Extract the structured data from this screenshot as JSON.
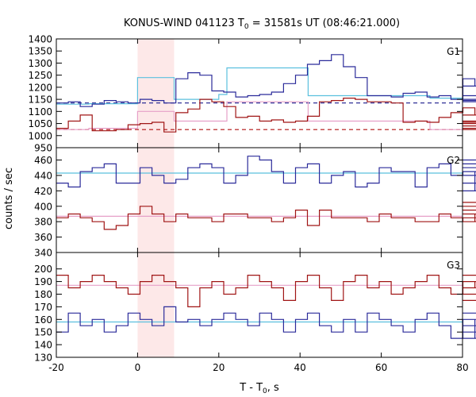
{
  "chart_data": {
    "type": "line",
    "title": "KONUS-WIND 041123 T",
    "title_sub": "0",
    "title_rest": " = 31581s UT (08:46:21.000)",
    "xlabel": "T - T",
    "xlabel_sub": "0",
    "xlabel_rest": ", s",
    "ylabel": "counts / sec",
    "xlim": [
      -20,
      80
    ],
    "x_ticks": [
      -20,
      0,
      20,
      40,
      60,
      80
    ],
    "highlight": {
      "x_start": 0,
      "x_end": 9,
      "color": "#fde8e8"
    },
    "colors": {
      "blue_hist": "#2b2b9a",
      "red_hist": "#a01515",
      "blue_fit": "#5bc0de",
      "red_fit": "#e6a0c8",
      "blue_bg": "#1a1a8c",
      "red_bg": "#b01010"
    },
    "step": 2.944,
    "x_start": -20,
    "panels": [
      {
        "label": "G1",
        "ylim": [
          950,
          1400
        ],
        "y_ticks": [
          950,
          1000,
          1050,
          1100,
          1150,
          1200,
          1250,
          1300,
          1350,
          1400
        ],
        "series": [
          {
            "color": "blue_hist",
            "values": [
              1135,
              1140,
              1120,
              1130,
              1145,
              1140,
              1135,
              1150,
              1145,
              1135,
              1235,
              1260,
              1250,
              1185,
              1180,
              1160,
              1165,
              1170,
              1180,
              1215,
              1250,
              1295,
              1310,
              1335,
              1285,
              1240,
              1165,
              1165,
              1160,
              1175,
              1180,
              1160,
              1165,
              1150,
              1235,
              1205,
              1165,
              1150,
              1145,
              1140,
              1150,
              1145,
              1145,
              1145
            ]
          },
          {
            "color": "red_hist",
            "values": [
              1030,
              1060,
              1085,
              1020,
              1020,
              1025,
              1045,
              1050,
              1055,
              1015,
              1095,
              1110,
              1150,
              1140,
              1120,
              1075,
              1080,
              1060,
              1065,
              1055,
              1060,
              1080,
              1140,
              1145,
              1155,
              1150,
              1140,
              1140,
              1135,
              1055,
              1060,
              1055,
              1075,
              1095,
              1115,
              1085,
              1055,
              1060,
              1050,
              1060,
              1050,
              1030,
              1040,
              1025
            ]
          }
        ],
        "fits": [
          {
            "color": "blue_fit",
            "x": [
              -20,
              -12,
              -12,
              0,
              0,
              9,
              9,
              20,
              20,
              22,
              22,
              42,
              42,
              72,
              72,
              80
            ],
            "y": [
              1130,
              1130,
              1132,
              1132,
              1240,
              1240,
              1150,
              1150,
              1170,
              1170,
              1280,
              1280,
              1165,
              1165,
              1155,
              1155
            ]
          },
          {
            "color": "red_fit",
            "x": [
              -20,
              -12,
              -12,
              0,
              0,
              9,
              9,
              20,
              20,
              22,
              22,
              42,
              42,
              72,
              72,
              80
            ],
            "y": [
              1025,
              1025,
              1030,
              1030,
              1100,
              1100,
              1060,
              1060,
              1060,
              1060,
              1140,
              1140,
              1060,
              1060,
              1025,
              1025
            ]
          }
        ],
        "backgrounds": [
          {
            "color": "blue_bg",
            "y": 1135
          },
          {
            "color": "red_bg",
            "y": 1025
          }
        ]
      },
      {
        "label": "G2",
        "ylim": [
          340,
          476
        ],
        "y_ticks": [
          340,
          360,
          380,
          400,
          420,
          440,
          460
        ],
        "series": [
          {
            "color": "blue_hist",
            "values": [
              430,
              425,
              445,
              450,
              455,
              430,
              430,
              450,
              440,
              430,
              435,
              450,
              455,
              450,
              430,
              440,
              465,
              460,
              445,
              430,
              450,
              455,
              430,
              440,
              445,
              425,
              430,
              450,
              445,
              445,
              425,
              450,
              455,
              440,
              445,
              420,
              440,
              445,
              430,
              455,
              445,
              450,
              460,
              455
            ]
          },
          {
            "color": "red_hist",
            "values": [
              385,
              390,
              385,
              380,
              370,
              375,
              390,
              400,
              390,
              380,
              390,
              385,
              385,
              380,
              390,
              390,
              385,
              385,
              380,
              385,
              395,
              375,
              395,
              385,
              385,
              385,
              380,
              390,
              385,
              385,
              380,
              380,
              390,
              385,
              380,
              390,
              395,
              390,
              390,
              405,
              385,
              380,
              395,
              400
            ]
          }
        ],
        "fits": [
          {
            "color": "blue_fit",
            "x": [
              -20,
              80
            ],
            "y": [
              443,
              443
            ]
          },
          {
            "color": "red_fit",
            "x": [
              -20,
              80
            ],
            "y": [
              387,
              387
            ]
          }
        ],
        "backgrounds": []
      },
      {
        "label": "G3",
        "ylim": [
          130,
          213
        ],
        "y_ticks": [
          130,
          140,
          150,
          160,
          170,
          180,
          190,
          200
        ],
        "series": [
          {
            "color": "red_hist",
            "values": [
              195,
              185,
              190,
              195,
              190,
              185,
              180,
              190,
              195,
              190,
              185,
              170,
              185,
              190,
              180,
              185,
              195,
              190,
              185,
              175,
              190,
              195,
              185,
              175,
              190,
              195,
              185,
              190,
              180,
              185,
              190,
              195,
              185,
              180,
              190,
              185,
              175,
              190,
              195,
              185,
              190,
              175,
              180,
              195
            ]
          },
          {
            "color": "blue_hist",
            "values": [
              150,
              165,
              155,
              160,
              150,
              155,
              165,
              160,
              155,
              170,
              158,
              160,
              155,
              160,
              165,
              160,
              155,
              165,
              160,
              150,
              160,
              165,
              155,
              150,
              160,
              150,
              165,
              160,
              155,
              150,
              160,
              165,
              155,
              145,
              160,
              145,
              165,
              150,
              145,
              155,
              160,
              150,
              155,
              165
            ]
          }
        ],
        "fits": [
          {
            "color": "red_fit",
            "x": [
              -20,
              80
            ],
            "y": [
              187,
              187
            ]
          },
          {
            "color": "blue_fit",
            "x": [
              -20,
              80
            ],
            "y": [
              158,
              158
            ]
          }
        ],
        "backgrounds": []
      }
    ]
  }
}
